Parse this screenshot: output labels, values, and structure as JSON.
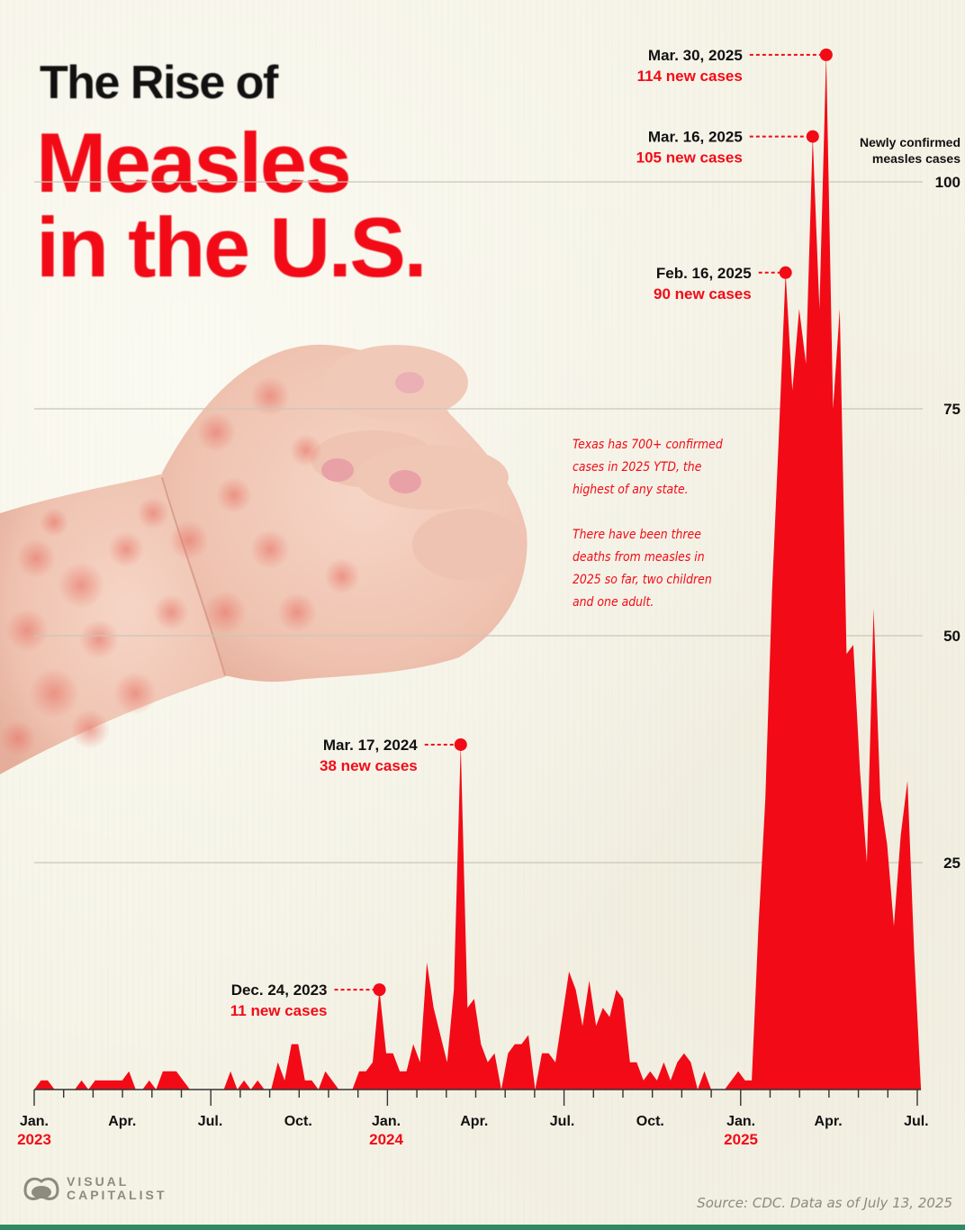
{
  "title": {
    "line1": "The Rise of",
    "line2": "Measles",
    "line3": "in the U.S."
  },
  "note": {
    "paragraph1": "Texas has 700+ confirmed cases in 2025 YTD, the highest of any state.",
    "paragraph2": "There have been three deaths from measles in 2025 so far, two children and one adult."
  },
  "footer": {
    "logo_line1": "VISUAL",
    "logo_line2": "CAPITALIST",
    "source": "Source: CDC. Data as of July 13, 2025"
  },
  "colors": {
    "accent": "#f20b17",
    "background": "#f5f3e6",
    "footer_bar": "#2f8a63"
  },
  "chart_data": {
    "type": "area",
    "title": "The Rise of Measles in the U.S.",
    "ylabel": "Newly confirmed measles cases",
    "ylabel_lines": [
      "Newly confirmed",
      "measles cases"
    ],
    "xlabel": "",
    "ylim": [
      0,
      120
    ],
    "yticks": [
      25,
      50,
      75,
      100
    ],
    "grid": true,
    "x_start": "2023-01-01",
    "x_interval": "week",
    "xtick_labels": [
      {
        "label": "Jan.",
        "year": "2023",
        "week": 0
      },
      {
        "label": "Apr.",
        "year": "",
        "week": 13
      },
      {
        "label": "Jul.",
        "year": "",
        "week": 26
      },
      {
        "label": "Oct.",
        "year": "",
        "week": 39
      },
      {
        "label": "Jan.",
        "year": "2024",
        "week": 52
      },
      {
        "label": "Apr.",
        "year": "",
        "week": 65
      },
      {
        "label": "Jul.",
        "year": "",
        "week": 78
      },
      {
        "label": "Oct.",
        "year": "",
        "week": 91
      },
      {
        "label": "Jan.",
        "year": "2025",
        "week": 104.4
      },
      {
        "label": "Apr.",
        "year": "",
        "week": 117.3
      },
      {
        "label": "Jul.",
        "year": "",
        "week": 130.3
      }
    ],
    "values": [
      0,
      1,
      1,
      0,
      0,
      0,
      0,
      1,
      0,
      1,
      1,
      1,
      1,
      1,
      2,
      0,
      0,
      1,
      0,
      2,
      2,
      2,
      1,
      0,
      0,
      0,
      0,
      0,
      0,
      2,
      0,
      1,
      0,
      1,
      0,
      0,
      3,
      1,
      5,
      5,
      1,
      1,
      0,
      2,
      1,
      0,
      0,
      0,
      2,
      2,
      3,
      11,
      4,
      4,
      2,
      2,
      5,
      3,
      14,
      9,
      6,
      3,
      11,
      38,
      9,
      10,
      5,
      3,
      4,
      0,
      4,
      5,
      5,
      6,
      0,
      4,
      4,
      3,
      8,
      13,
      11,
      7,
      12,
      7,
      9,
      8,
      11,
      10,
      3,
      3,
      1,
      2,
      1,
      3,
      1,
      3,
      4,
      3,
      0,
      2,
      0,
      0,
      0,
      1,
      2,
      1,
      1,
      18,
      32,
      55,
      72,
      90,
      77,
      86,
      80,
      105,
      86,
      114,
      75,
      86,
      48,
      49,
      35,
      25,
      53,
      32,
      27,
      18,
      28,
      34,
      15,
      0
    ],
    "annotations": [
      {
        "date": "Dec. 24, 2023",
        "text": "11 new cases",
        "week": 51,
        "value": 11
      },
      {
        "date": "Mar. 17, 2024",
        "text": "38 new cases",
        "week": 63,
        "value": 38
      },
      {
        "date": "Feb. 16, 2025",
        "text": "90 new cases",
        "week": 111,
        "value": 90
      },
      {
        "date": "Mar. 16, 2025",
        "text": "105 new cases",
        "week": 115,
        "value": 105
      },
      {
        "date": "Mar. 30, 2025",
        "text": "114 new cases",
        "week": 117,
        "value": 114
      }
    ]
  }
}
